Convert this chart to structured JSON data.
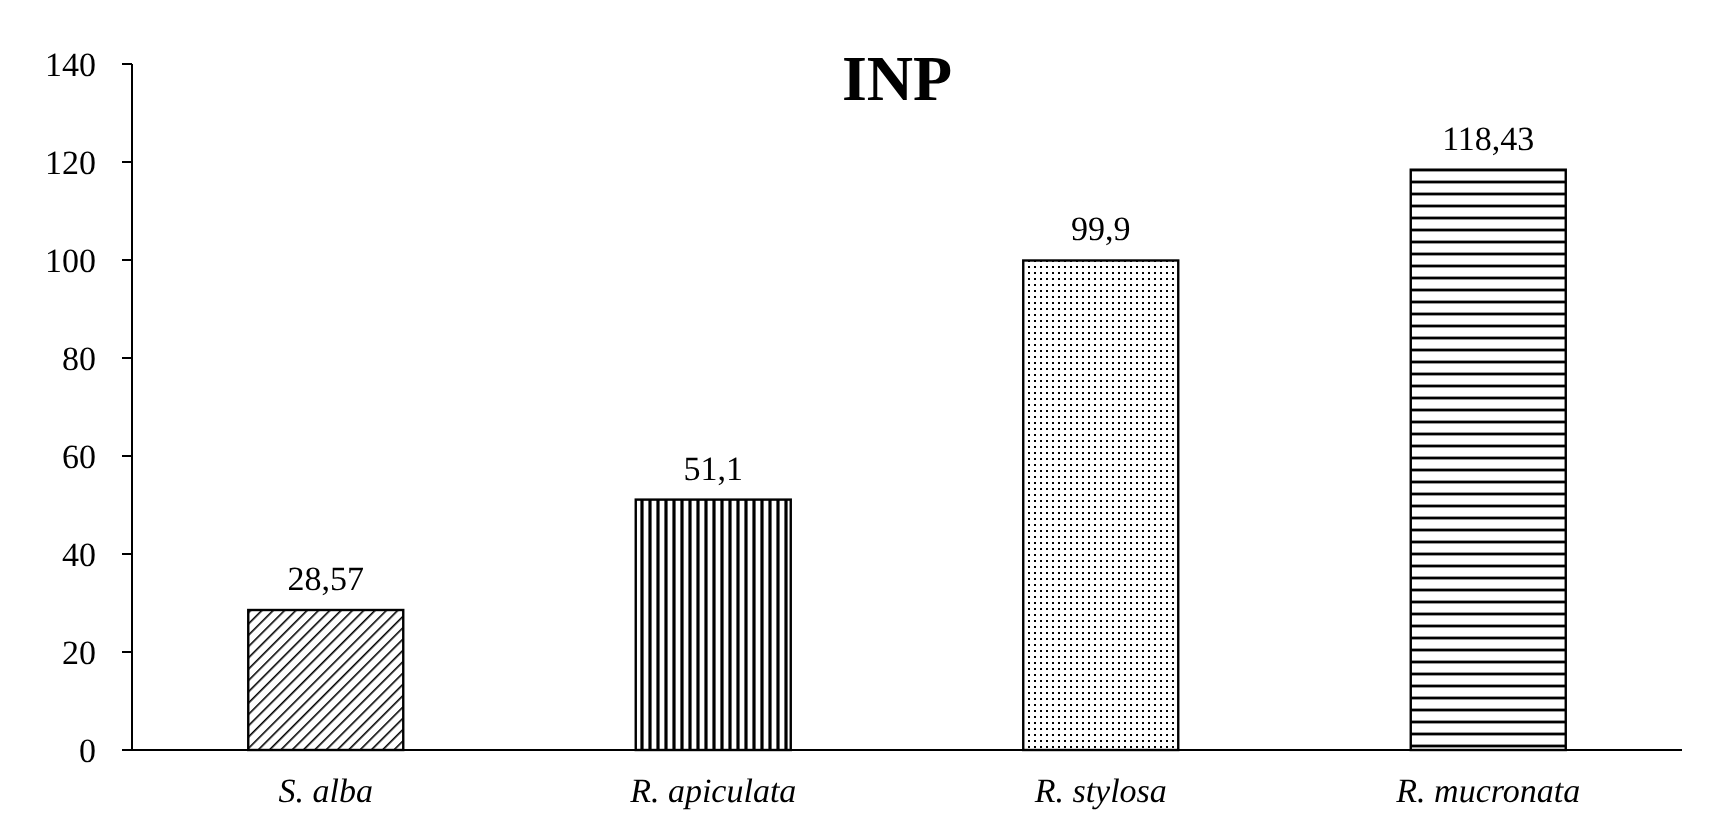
{
  "chart_data": {
    "type": "bar",
    "title": "INP",
    "categories": [
      "S. alba",
      "R. apiculata",
      "R. stylosa",
      "R. mucronata"
    ],
    "values": [
      28.57,
      51.1,
      99.9,
      118.43
    ],
    "value_labels": [
      "28,57",
      "51,1",
      "99,9",
      "118,43"
    ],
    "colors": [
      "#000000",
      "#000000",
      "#000000",
      "#000000"
    ],
    "ylim": [
      0,
      140
    ],
    "yticks": [
      0,
      20,
      40,
      60,
      80,
      100,
      120,
      140
    ],
    "grid": false
  }
}
